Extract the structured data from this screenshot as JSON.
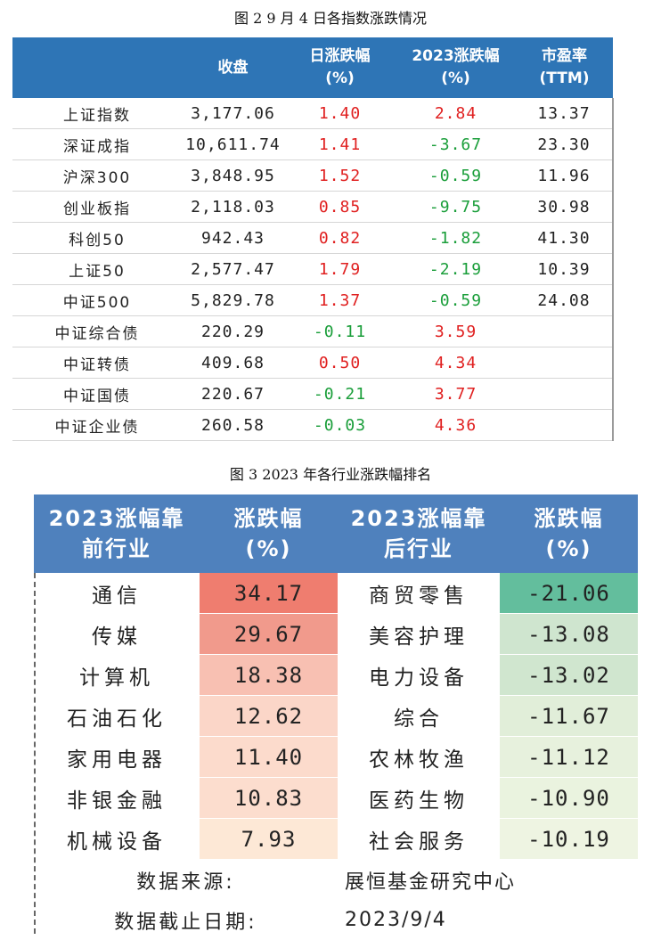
{
  "fig2": {
    "caption": "图 2   9 月 4 日各指数涨跌情况",
    "headers": [
      "",
      "收盘",
      "日涨跌幅\n(%)",
      "2023涨跌幅\n(%)",
      "市盈率\n(TTM)"
    ],
    "rows": [
      {
        "name": "上证指数",
        "close": "3,177.06",
        "day": "1.40",
        "ytd": "2.84",
        "pe": "13.37",
        "day_color": "red",
        "ytd_color": "red"
      },
      {
        "name": "深证成指",
        "close": "10,611.74",
        "day": "1.41",
        "ytd": "-3.67",
        "pe": "23.30",
        "day_color": "red",
        "ytd_color": "green"
      },
      {
        "name": "沪深300",
        "close": "3,848.95",
        "day": "1.52",
        "ytd": "-0.59",
        "pe": "11.96",
        "day_color": "red",
        "ytd_color": "green"
      },
      {
        "name": "创业板指",
        "close": "2,118.03",
        "day": "0.85",
        "ytd": "-9.75",
        "pe": "30.98",
        "day_color": "red",
        "ytd_color": "green"
      },
      {
        "name": "科创50",
        "close": "942.43",
        "day": "0.82",
        "ytd": "-1.82",
        "pe": "41.30",
        "day_color": "red",
        "ytd_color": "green"
      },
      {
        "name": "上证50",
        "close": "2,577.47",
        "day": "1.79",
        "ytd": "-2.19",
        "pe": "10.39",
        "day_color": "red",
        "ytd_color": "green"
      },
      {
        "name": "中证500",
        "close": "5,829.78",
        "day": "1.37",
        "ytd": "-0.59",
        "pe": "24.08",
        "day_color": "red",
        "ytd_color": "green"
      },
      {
        "name": "中证综合债",
        "close": "220.29",
        "day": "-0.11",
        "ytd": "3.59",
        "pe": "",
        "day_color": "green",
        "ytd_color": "red"
      },
      {
        "name": "中证转债",
        "close": "409.68",
        "day": "0.50",
        "ytd": "4.34",
        "pe": "",
        "day_color": "red",
        "ytd_color": "red"
      },
      {
        "name": "中证国债",
        "close": "220.67",
        "day": "-0.21",
        "ytd": "3.77",
        "pe": "",
        "day_color": "green",
        "ytd_color": "red"
      },
      {
        "name": "中证企业债",
        "close": "260.58",
        "day": "-0.03",
        "ytd": "4.36",
        "pe": "",
        "day_color": "green",
        "ytd_color": "red"
      }
    ]
  },
  "fig3": {
    "caption": "图 3   2023 年各行业涨跌幅排名",
    "headers": [
      "2023涨幅靠\n前行业",
      "涨跌幅\n(%)",
      "2023涨幅靠\n后行业",
      "涨跌幅\n(%)"
    ],
    "rows": [
      {
        "top_name": "通信",
        "top_value": "34.17",
        "top_bg": "#ef7d6f",
        "bottom_name": "商贸零售",
        "bottom_value": "-21.06",
        "bottom_bg": "#63be9d"
      },
      {
        "top_name": "传媒",
        "top_value": "29.67",
        "top_bg": "#f19a8c",
        "bottom_name": "美容护理",
        "bottom_value": "-13.08",
        "bottom_bg": "#cfe5cf"
      },
      {
        "top_name": "计算机",
        "top_value": "18.38",
        "top_bg": "#f8c0b2",
        "bottom_name": "电力设备",
        "bottom_value": "-13.02",
        "bottom_bg": "#d0e6cf"
      },
      {
        "top_name": "石油石化",
        "top_value": "12.62",
        "top_bg": "#fbd6c8",
        "bottom_name": "综合",
        "bottom_value": "-11.67",
        "bottom_bg": "#e1eed9"
      },
      {
        "top_name": "家用电器",
        "top_value": "11.40",
        "top_bg": "#fcdbcc",
        "bottom_name": "农林牧渔",
        "bottom_value": "-11.12",
        "bottom_bg": "#e7f1dd"
      },
      {
        "top_name": "非银金融",
        "top_value": "10.83",
        "top_bg": "#fcddce",
        "bottom_name": "医药生物",
        "bottom_value": "-10.90",
        "bottom_bg": "#eaf3df"
      },
      {
        "top_name": "机械设备",
        "top_value": "7.93",
        "top_bg": "#fde8d6",
        "bottom_name": "社会服务",
        "bottom_value": "-10.19",
        "bottom_bg": "#eef4e2"
      }
    ],
    "source_label": "数据来源:",
    "source_value": "展恒基金研究中心",
    "date_label": "数据截止日期:",
    "date_value": "2023/9/4"
  },
  "colors": {
    "fig2_header": "#2e75b6",
    "fig3_header": "#4f81bd",
    "positive": "#e02020",
    "negative": "#1a9e3a"
  }
}
